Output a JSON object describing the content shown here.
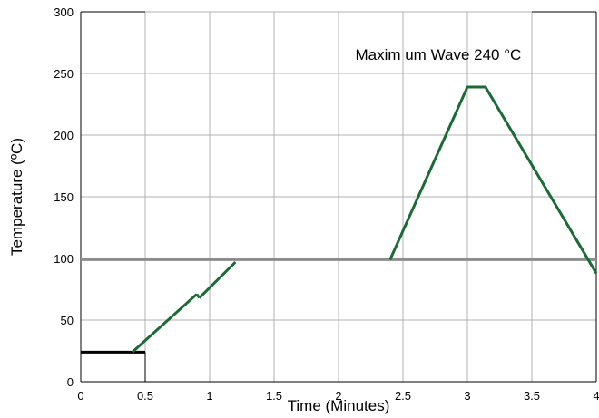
{
  "chart_data": {
    "type": "line",
    "xlabel": "Time (Minutes)",
    "ylabel": "Temperature (ºC)",
    "xlim": [
      0,
      4
    ],
    "ylim": [
      0,
      300
    ],
    "xticks": [
      "0",
      "0.5",
      "1",
      "1.5",
      "2",
      "2.5",
      "3",
      "3.5",
      "4"
    ],
    "yticks": [
      "0",
      "50",
      "100",
      "150",
      "200",
      "250",
      "300"
    ],
    "grid": true,
    "annotation": {
      "text": "Maxim um Wave 240 °C",
      "x": 2.13,
      "y": 261
    },
    "reference_line": {
      "y": 99,
      "color": "#8c8c8c"
    },
    "initial_level": {
      "y": 24,
      "x": [
        0,
        0.5
      ],
      "color": "#000000"
    },
    "series": [
      {
        "color": "#1a6b35",
        "x": [
          0.4,
          0.9
        ],
        "y": [
          24,
          71
        ]
      },
      {
        "color": "#1a6b35",
        "x": [
          0.9,
          0.92
        ],
        "y": [
          71,
          68
        ]
      },
      {
        "color": "#1a6b35",
        "x": [
          0.92,
          1.2
        ],
        "y": [
          68,
          97
        ]
      },
      {
        "color": "#1a6b35",
        "x": [
          2.4,
          3.0,
          3.14,
          4.0
        ],
        "y": [
          99,
          239,
          239,
          88
        ]
      }
    ]
  }
}
